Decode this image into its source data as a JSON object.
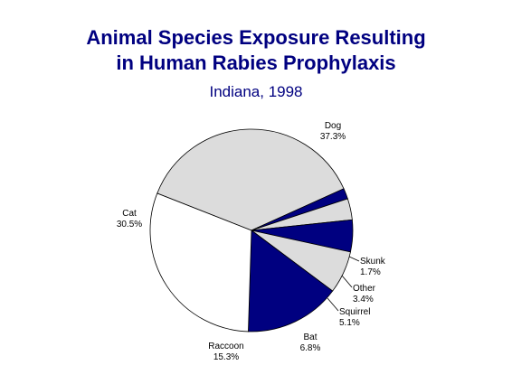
{
  "chart_data": {
    "type": "pie",
    "title_line1": "Animal Species Exposure Resulting",
    "title_line2": "in Human Rabies Prophylaxis",
    "subtitle": "Indiana, 1998",
    "slices": [
      {
        "label": "Dog",
        "value": 37.3,
        "value_text": "37.3%",
        "color": "#dcdcdc"
      },
      {
        "label": "Skunk",
        "value": 1.7,
        "value_text": "1.7%",
        "color": "#000080"
      },
      {
        "label": "Other",
        "value": 3.4,
        "value_text": "3.4%",
        "color": "#dcdcdc"
      },
      {
        "label": "Squirrel",
        "value": 5.1,
        "value_text": "5.1%",
        "color": "#000080"
      },
      {
        "label": "Bat",
        "value": 6.8,
        "value_text": "6.8%",
        "color": "#dcdcdc"
      },
      {
        "label": "Raccoon",
        "value": 15.3,
        "value_text": "15.3%",
        "color": "#000080"
      },
      {
        "label": "Cat",
        "value": 30.5,
        "value_text": "30.5%",
        "color": "#ffffff"
      }
    ]
  }
}
